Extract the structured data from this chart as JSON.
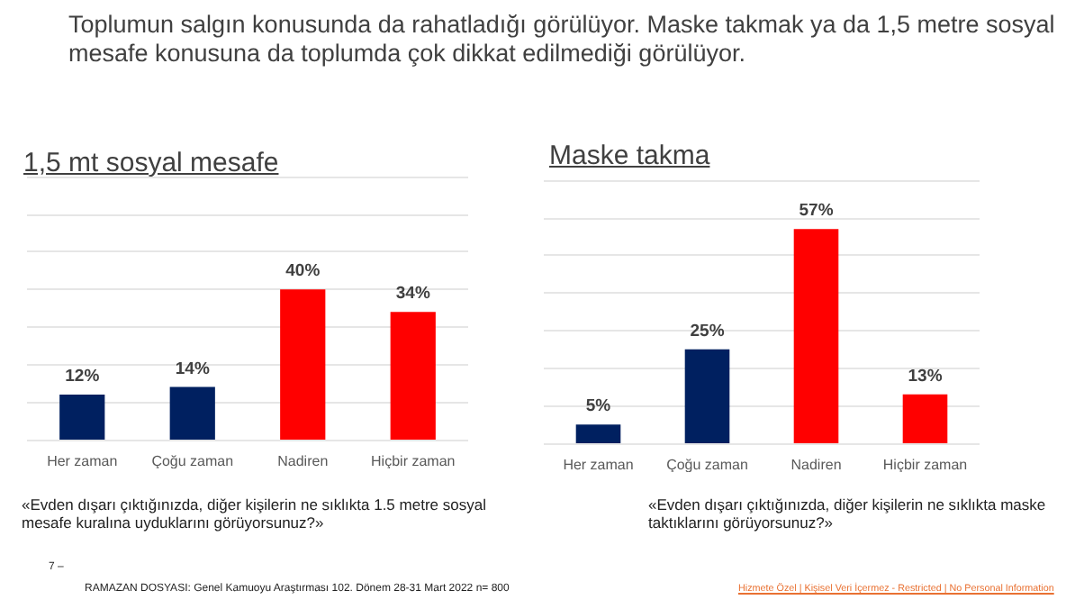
{
  "chart_data": [
    {
      "type": "bar",
      "title": "1,5 mt sosyal mesafe",
      "categories": [
        "Her zaman",
        "Çoğu zaman",
        "Nadiren",
        "Hiçbir zaman"
      ],
      "values": [
        12,
        14,
        40,
        34
      ],
      "colors": [
        "#002060",
        "#002060",
        "#ff0000",
        "#ff0000"
      ],
      "value_labels": [
        "12%",
        "14%",
        "40%",
        "34%"
      ],
      "ylim": [
        0,
        70
      ],
      "yticks": [
        {
          "value": 0,
          "label": null
        },
        {
          "value": 10,
          "label": null
        },
        {
          "value": 20,
          "label": null
        },
        {
          "value": 30,
          "label": null
        },
        {
          "value": 40,
          "label": null
        },
        {
          "value": 50,
          "label": null
        },
        {
          "value": 60,
          "label": null
        },
        {
          "value": 70,
          "label": null
        }
      ],
      "grid": "y",
      "tick_labels": "x",
      "annotations": [
        "Toplumun salgın konusunda da rahatladığı görülüyor. Maske takmak ya da 1,5 metre sosyal mesafe konusuna da toplumda çok dikkat edilmediği görülüyor.",
        "«Evden dışarı çıktığınızda, diğer kişilerin ne sıklıkta 1.5 metre sosyal mesafe kuralına uyduklarını görüyorsunuz?»",
        "7 –"
      ]
    },
    {
      "type": "bar",
      "title": "Maske takma",
      "categories": [
        "Her zaman",
        "Çoğu zaman",
        "Nadiren",
        "Hiçbir zaman"
      ],
      "values": [
        5,
        25,
        57,
        13
      ],
      "colors": [
        "#002060",
        "#002060",
        "#ff0000",
        "#ff0000"
      ],
      "value_labels": [
        "5%",
        "25%",
        "57%",
        "13%"
      ],
      "ylim": [
        0,
        70
      ],
      "yticks": [
        {
          "value": 0,
          "label": null
        },
        {
          "value": 10,
          "label": null
        },
        {
          "value": 20,
          "label": null
        },
        {
          "value": 30,
          "label": null
        },
        {
          "value": 40,
          "label": null
        },
        {
          "value": 50,
          "label": null
        },
        {
          "value": 60,
          "label": null
        },
        {
          "value": 70,
          "label": null
        }
      ],
      "grid": "y",
      "tick_labels": "x",
      "annotations": [
        "«Evden dışarı çıktığınızda, diğer kişilerin ne sıklıkta maske taktıklarını görüyorsunuz?»",
        "RAMAZAN DOSYASI: Genel Kamuoyu Araştırması 102. Dönem  28-31 Mart 2022 n= 800",
        "Hizmete Özel | Kişisel Veri İçermez - Restricted | No Personal Information"
      ]
    }
  ]
}
